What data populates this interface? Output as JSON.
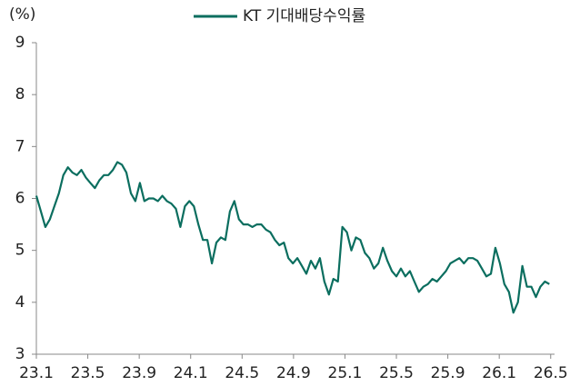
{
  "chart_data": {
    "type": "line",
    "y_label": "(%)",
    "series": [
      {
        "name": "KT 기대배당수익률",
        "color": "#0b6e5f",
        "x": [
          0,
          0.35,
          0.7,
          1.05,
          1.4,
          1.75,
          2.1,
          2.45,
          2.8,
          3.15,
          3.5,
          3.85,
          4.2,
          4.55,
          4.9,
          5.25,
          5.6,
          5.95,
          6.3,
          6.65,
          7,
          7.35,
          7.7,
          8.05,
          8.4,
          8.75,
          9.1,
          9.45,
          9.8,
          10.15,
          10.5,
          10.85,
          11.2,
          11.55,
          11.9,
          12.25,
          12.6,
          12.95,
          13.3,
          13.65,
          14,
          14.35,
          14.7,
          15.05,
          15.4,
          15.75,
          16.1,
          16.45,
          16.8,
          17.15,
          17.5,
          17.85,
          18.2,
          18.55,
          18.9,
          19.25,
          19.6,
          19.95,
          20.3,
          20.65,
          21,
          21.35,
          21.7,
          22.05,
          22.4,
          22.75,
          23.1,
          23.45,
          23.8,
          24.15,
          24.5,
          24.85,
          25.2,
          25.55,
          25.9,
          26.25,
          26.6,
          26.95,
          27.3,
          27.65,
          28,
          28.35,
          28.7,
          29.05,
          29.4,
          29.75,
          30.1,
          30.45,
          30.8,
          31.15,
          31.5,
          31.85,
          32.2,
          32.55,
          32.9,
          33.25,
          33.6,
          33.95,
          34.3,
          34.65,
          35,
          35.35,
          35.7,
          36.05,
          36.4,
          36.75,
          37.1,
          37.45,
          37.8,
          38.15,
          38.5,
          38.85,
          39.2,
          39.55,
          39.9
        ],
        "values": [
          6.05,
          5.75,
          5.45,
          5.6,
          5.85,
          6.1,
          6.45,
          6.6,
          6.5,
          6.45,
          6.55,
          6.4,
          6.3,
          6.2,
          6.35,
          6.45,
          6.45,
          6.55,
          6.7,
          6.65,
          6.5,
          6.1,
          5.95,
          6.3,
          5.95,
          6.0,
          6.0,
          5.95,
          6.05,
          5.95,
          5.9,
          5.8,
          5.45,
          5.85,
          5.95,
          5.85,
          5.5,
          5.2,
          5.2,
          4.75,
          5.15,
          5.25,
          5.2,
          5.75,
          5.95,
          5.6,
          5.5,
          5.5,
          5.45,
          5.5,
          5.5,
          5.4,
          5.35,
          5.2,
          5.1,
          5.15,
          4.85,
          4.75,
          4.85,
          4.7,
          4.55,
          4.8,
          4.65,
          4.85,
          4.4,
          4.15,
          4.45,
          4.4,
          5.45,
          5.35,
          5.0,
          5.25,
          5.2,
          4.95,
          4.85,
          4.65,
          4.75,
          5.05,
          4.8,
          4.6,
          4.5,
          4.65,
          4.5,
          4.6,
          4.4,
          4.2,
          4.3,
          4.35,
          4.45,
          4.4,
          4.5,
          4.6,
          4.75,
          4.8,
          4.85,
          4.75,
          4.85,
          4.85,
          4.8,
          4.65,
          4.5,
          4.55,
          5.05,
          4.75,
          4.35,
          4.2,
          3.8,
          4.0,
          4.7,
          4.3,
          4.3,
          4.1,
          4.3,
          4.4,
          4.35
        ]
      }
    ],
    "xlim": [
      0,
      40.3
    ],
    "xticks": [
      {
        "value": 0,
        "label": "23.1"
      },
      {
        "value": 4,
        "label": "23.5"
      },
      {
        "value": 8,
        "label": "23.9"
      },
      {
        "value": 12,
        "label": "24.1"
      },
      {
        "value": 16,
        "label": "24.5"
      },
      {
        "value": 20,
        "label": "24.9"
      },
      {
        "value": 24,
        "label": "25.1"
      },
      {
        "value": 28,
        "label": "25.5"
      },
      {
        "value": 32,
        "label": "25.9"
      },
      {
        "value": 36,
        "label": "26.1"
      },
      {
        "value": 40,
        "label": "26.5"
      }
    ],
    "ylim": [
      3,
      9
    ],
    "yticks": [
      3,
      4,
      5,
      6,
      7,
      8,
      9
    ],
    "legend": "top"
  }
}
